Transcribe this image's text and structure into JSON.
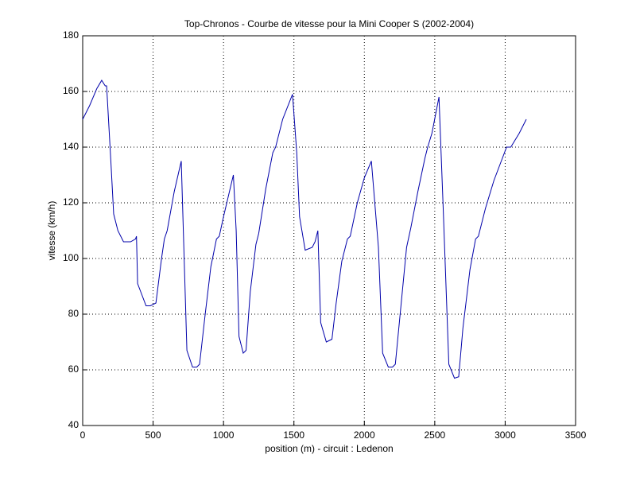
{
  "chart_data": {
    "type": "line",
    "title": "Top-Chronos - Courbe de vitesse pour la Mini Cooper S (2002-2004)",
    "x_label": "position (m) - circuit : Ledenon",
    "y_label": "vitesse (km/h)",
    "x": [
      0,
      50,
      100,
      135,
      160,
      170,
      200,
      220,
      250,
      290,
      340,
      375,
      382,
      390,
      420,
      450,
      480,
      520,
      560,
      580,
      600,
      650,
      700,
      740,
      780,
      810,
      830,
      870,
      910,
      950,
      970,
      1000,
      1070,
      1090,
      1110,
      1140,
      1160,
      1190,
      1230,
      1250,
      1300,
      1350,
      1370,
      1420,
      1490,
      1520,
      1540,
      1580,
      1630,
      1650,
      1670,
      1690,
      1730,
      1770,
      1800,
      1840,
      1880,
      1900,
      1950,
      2000,
      2050,
      2100,
      2130,
      2170,
      2200,
      2220,
      2260,
      2300,
      2330,
      2380,
      2430,
      2450,
      2480,
      2530,
      2560,
      2600,
      2640,
      2670,
      2700,
      2750,
      2790,
      2810,
      2860,
      2920,
      2980,
      3010,
      3040,
      3100,
      3150
    ],
    "series": [
      {
        "name": "vitesse",
        "color": "#0000aa",
        "values": [
          150,
          155,
          161,
          164,
          162,
          162,
          135,
          116,
          110,
          106,
          106,
          107,
          108,
          91,
          87,
          83,
          83,
          84,
          100,
          107,
          110,
          124,
          135,
          67,
          61,
          61,
          62,
          80,
          97,
          107,
          108,
          115,
          130,
          110,
          72,
          66,
          67,
          88,
          105,
          109,
          125,
          138,
          140,
          150,
          159,
          138,
          115,
          103,
          104,
          106,
          110,
          77,
          70,
          71,
          84,
          99,
          107,
          108,
          120,
          129,
          135,
          104,
          66,
          61,
          61,
          62,
          83,
          104,
          111,
          124,
          136,
          140,
          145,
          158,
          118,
          62,
          57,
          57.5,
          75,
          96,
          107,
          108,
          118,
          128,
          136,
          140,
          140,
          145,
          150
        ]
      }
    ],
    "xlim": [
      0,
      3500
    ],
    "xticks": [
      0,
      500,
      1000,
      1500,
      2000,
      2500,
      3000,
      3500
    ],
    "ylim": [
      40,
      180
    ],
    "yticks": [
      40,
      60,
      80,
      100,
      120,
      140,
      160,
      180
    ],
    "grid": true
  }
}
